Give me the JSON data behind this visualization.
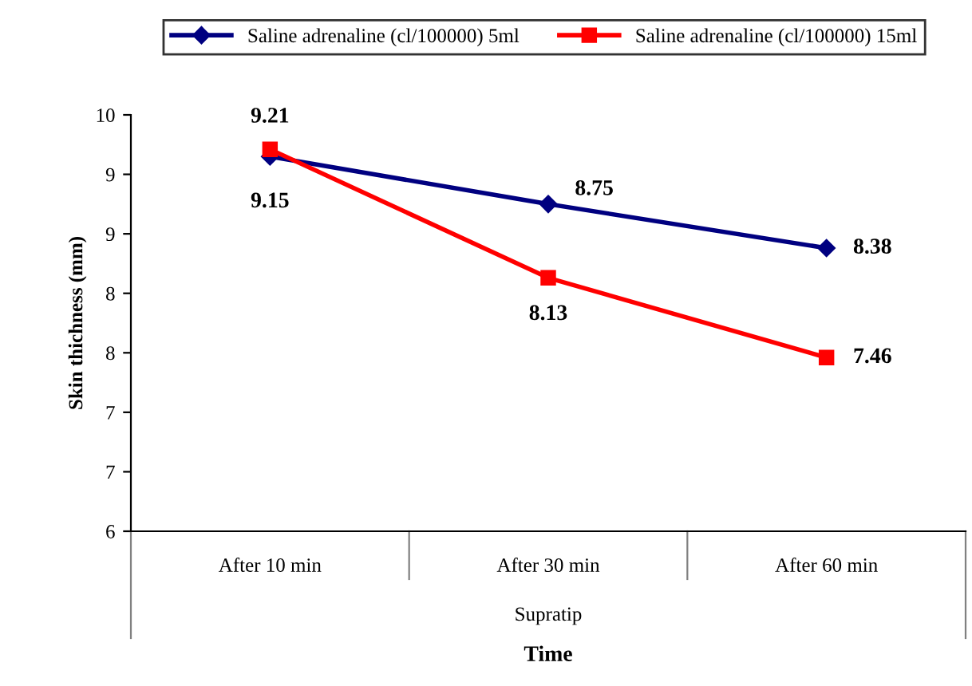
{
  "chart_data": {
    "type": "line",
    "xlabel": "Time",
    "ylabel": "Skin thichness (mm)",
    "categories": [
      "After 10 min",
      "After 30 min",
      "After 60 min"
    ],
    "series": [
      {
        "name": "Saline adrenaline (cl/100000) 5ml",
        "color": "#000080",
        "marker": "diamond",
        "values": [
          9.15,
          8.75,
          8.38
        ]
      },
      {
        "name": "Saline adrenaline (cl/100000) 15ml",
        "color": "#ff0000",
        "marker": "square",
        "values": [
          9.21,
          8.13,
          7.46
        ]
      }
    ],
    "ylim": [
      6,
      9.5
    ],
    "yticks": [
      {
        "value": 6,
        "label": "6"
      },
      {
        "value": 6.5,
        "label": "7"
      },
      {
        "value": 7,
        "label": "7"
      },
      {
        "value": 7.5,
        "label": "8"
      },
      {
        "value": 8,
        "label": "8"
      },
      {
        "value": 8.5,
        "label": "9"
      },
      {
        "value": 9,
        "label": "9"
      },
      {
        "value": 9.5,
        "label": "10"
      }
    ],
    "annotations": [
      "Supratip"
    ],
    "data_labels": true,
    "legend": "top",
    "grid": false
  }
}
